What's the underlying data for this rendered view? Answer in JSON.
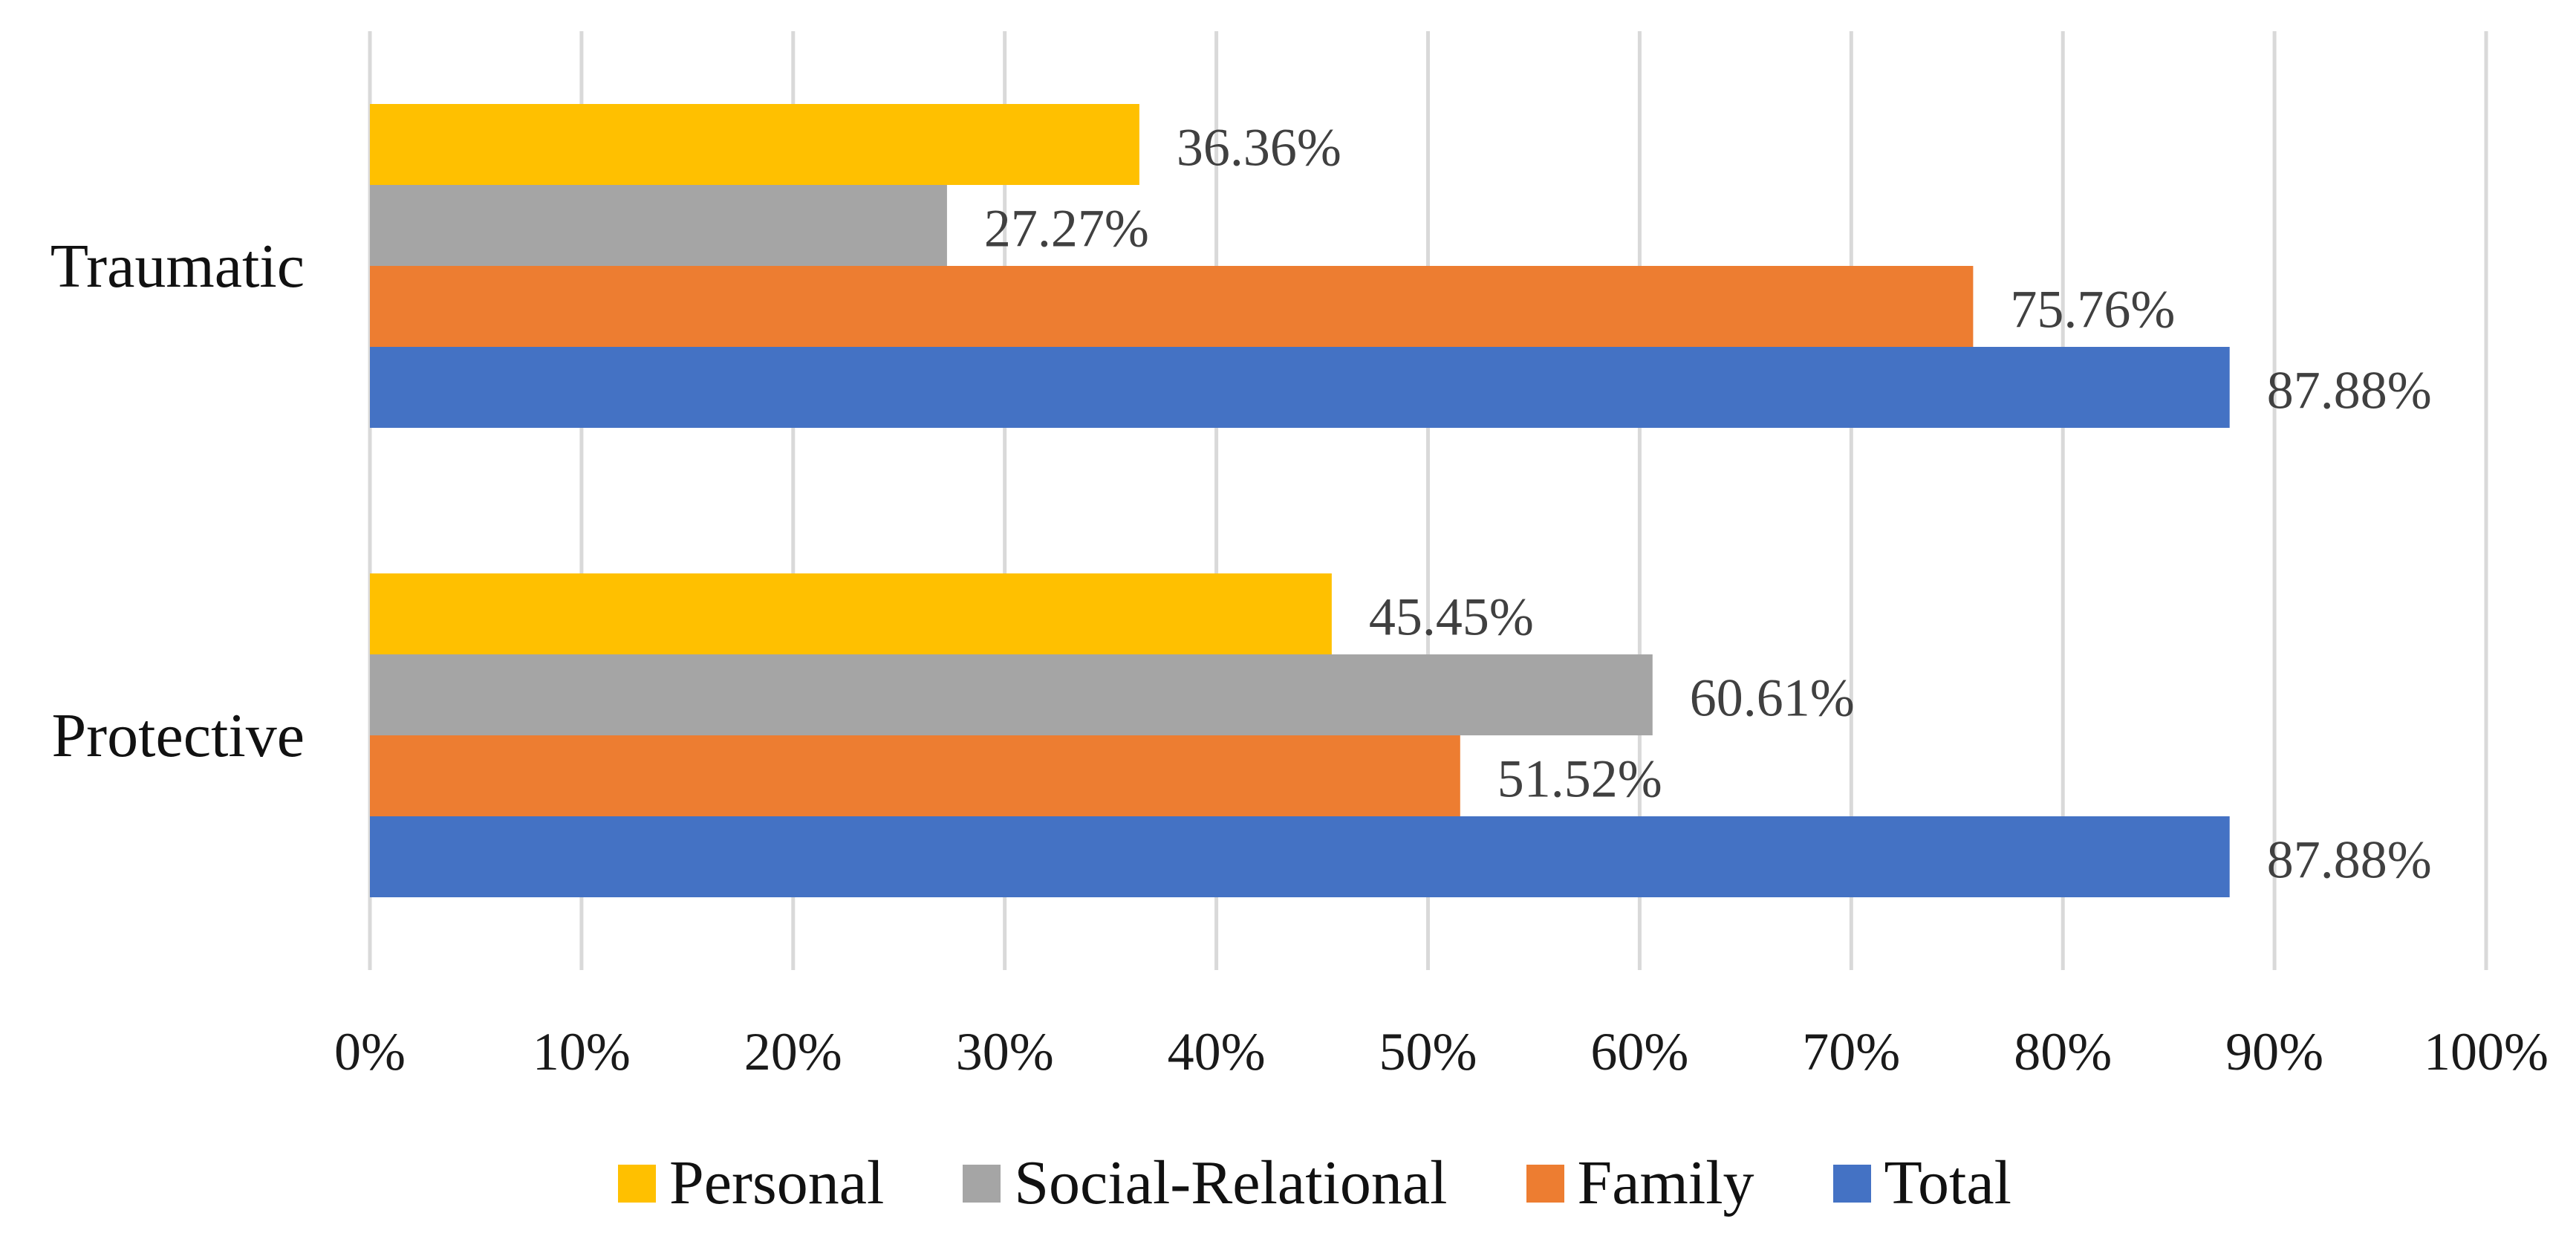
{
  "chart_data": {
    "type": "bar",
    "orientation": "horizontal",
    "categories": [
      "Traumatic",
      "Protective"
    ],
    "series": [
      {
        "name": "Personal",
        "color": "#FFC000",
        "values": [
          36.36,
          45.45
        ],
        "data_labels": [
          "36.36%",
          "45.45%"
        ]
      },
      {
        "name": "Social-Relational",
        "color": "#A5A5A5",
        "values": [
          27.27,
          60.61
        ],
        "data_labels": [
          "27.27%",
          "60.61%"
        ]
      },
      {
        "name": "Family",
        "color": "#ED7D31",
        "values": [
          75.76,
          51.52
        ],
        "data_labels": [
          "75.76%",
          "51.52%"
        ]
      },
      {
        "name": "Total",
        "color": "#4472C4",
        "values": [
          87.88,
          87.88
        ],
        "data_labels": [
          "87.88%",
          "87.88%"
        ]
      }
    ],
    "xlim": [
      0,
      100
    ],
    "x_ticks": [
      0,
      10,
      20,
      30,
      40,
      50,
      60,
      70,
      80,
      90,
      100
    ],
    "x_tick_labels": [
      "0%",
      "10%",
      "20%",
      "30%",
      "40%",
      "50%",
      "60%",
      "70%",
      "80%",
      "90%",
      "100%"
    ],
    "grid": "vertical",
    "legend": "bottom"
  }
}
